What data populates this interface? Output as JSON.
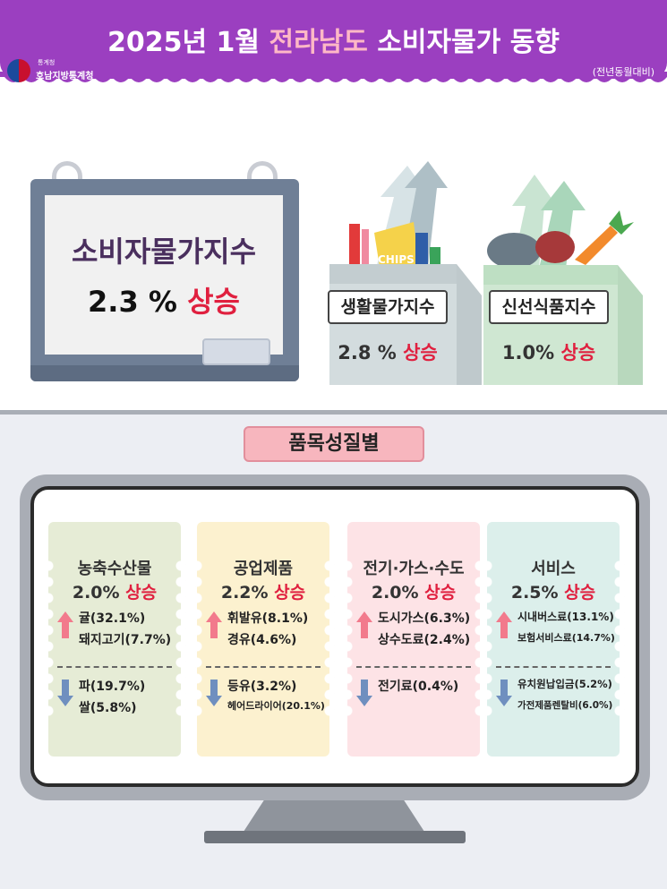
{
  "header": {
    "title_year": "2025년 1월",
    "title_region": "전라남도",
    "title_rest": "소비자물가 동향",
    "org_small": "통계청",
    "org": "호남지방통계청",
    "note": "(전년동월대비)"
  },
  "headline": {
    "label": "소비자물가지수",
    "value": "2.3 %",
    "direction": "상승"
  },
  "sub_indices": [
    {
      "label": "생활물가지수",
      "value": "2.8 %",
      "direction": "상승"
    },
    {
      "label": "신선식품지수",
      "value": "1.0%",
      "direction": "상승"
    }
  ],
  "bag_text": {
    "chips": "CHIPS"
  },
  "section_title": "품목성질별",
  "categories": [
    {
      "name": "농축수산물",
      "value": "2.0%",
      "direction": "상승",
      "bg": "#e6ecd6",
      "up": [
        "귤(32.1%)",
        "돼지고기(7.7%)"
      ],
      "down": [
        "파(19.7%)",
        "쌀(5.8%)"
      ]
    },
    {
      "name": "공업제품",
      "value": "2.2%",
      "direction": "상승",
      "bg": "#fcf1cf",
      "up": [
        "휘발유(8.1%)",
        "경유(4.6%)"
      ],
      "down": [
        "등유(3.2%)",
        "헤어드라이어(20.1%)"
      ]
    },
    {
      "name": "전기·가스·수도",
      "value": "2.0%",
      "direction": "상승",
      "bg": "#fde3e6",
      "up": [
        "도시가스(6.3%)",
        "상수도료(2.4%)"
      ],
      "down": [
        "전기료(0.4%)"
      ]
    },
    {
      "name": "서비스",
      "value": "2.5%",
      "direction": "상승",
      "bg": "#dcefeb",
      "up": [
        "시내버스료(13.1%)",
        "보험서비스료(14.7%)"
      ],
      "down": [
        "유치원납입금(5.2%)",
        "가전제품렌탈비(6.0%)"
      ]
    }
  ],
  "colors": {
    "header": "#9b3fc0",
    "up_arrow": "#f27a8c",
    "down_arrow": "#6f8fbf",
    "direction_text": "#e0203f"
  },
  "icons": [
    "up-arrow-icon",
    "down-arrow-icon",
    "government-emblem-icon",
    "grocery-bag-icon",
    "fresh-food-bag-icon"
  ]
}
